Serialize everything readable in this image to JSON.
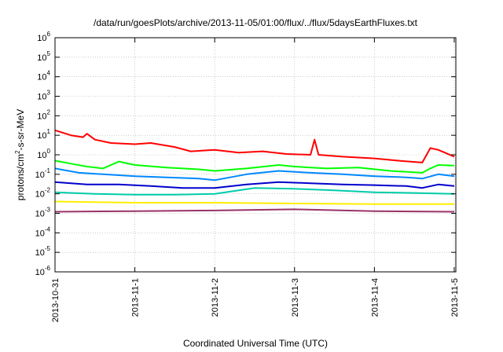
{
  "chart_data": {
    "type": "line",
    "title": "/data/run/goesPlots/archive/2013-11-05/01:00/flux/../flux/5daysEarthFluxes.txt",
    "xlabel": "Coordinated Universal Time (UTC)",
    "ylabel": "protons/cm2-s-sr-MeV",
    "ylabel_parts": {
      "pre": "protons/cm",
      "sup": "2",
      "post": "-s-sr-MeV"
    },
    "yscale": "log",
    "ylim_exp": [
      -6,
      6
    ],
    "ytick_base": "10",
    "ytick_exponents": [
      "-6",
      "-5",
      "-4",
      "-3",
      "-2",
      "-1",
      "0",
      "1",
      "2",
      "3",
      "4",
      "5",
      "6"
    ],
    "x_unit": "days",
    "xlim": [
      0,
      5.02
    ],
    "xticks": [
      {
        "x": 0,
        "label": "2013-10-31"
      },
      {
        "x": 1,
        "label": "2013-11-1"
      },
      {
        "x": 2,
        "label": "2013-11-2"
      },
      {
        "x": 3,
        "label": "2013-11-3"
      },
      {
        "x": 4,
        "label": "2013-11-4"
      },
      {
        "x": 5,
        "label": "2013-11-5"
      }
    ],
    "grid": true,
    "series": [
      {
        "color": "#ff0000",
        "x": [
          0,
          0.2,
          0.35,
          0.4,
          0.5,
          0.7,
          1.0,
          1.2,
          1.5,
          1.7,
          2.0,
          2.3,
          2.6,
          2.9,
          3.2,
          3.25,
          3.3,
          3.6,
          4.0,
          4.3,
          4.6,
          4.7,
          4.8,
          5.0
        ],
        "y": [
          18,
          10,
          8,
          12,
          6,
          4,
          3.5,
          4,
          2.5,
          1.5,
          1.8,
          1.3,
          1.5,
          1.1,
          1.0,
          6,
          1.0,
          0.8,
          0.65,
          0.5,
          0.4,
          2.2,
          1.8,
          0.8
        ]
      },
      {
        "color": "#00ff00",
        "x": [
          0,
          0.2,
          0.4,
          0.6,
          0.8,
          1.0,
          1.4,
          1.8,
          2.0,
          2.4,
          2.8,
          3.0,
          3.4,
          3.8,
          4.2,
          4.6,
          4.7,
          4.8,
          5.0
        ],
        "y": [
          0.5,
          0.35,
          0.25,
          0.2,
          0.45,
          0.3,
          0.22,
          0.18,
          0.15,
          0.2,
          0.3,
          0.25,
          0.2,
          0.22,
          0.15,
          0.12,
          0.2,
          0.3,
          0.28
        ]
      },
      {
        "color": "#0088ff",
        "x": [
          0,
          0.3,
          0.6,
          1.0,
          1.4,
          1.8,
          2.0,
          2.4,
          2.8,
          3.2,
          3.6,
          4.0,
          4.4,
          4.6,
          4.8,
          5.0
        ],
        "y": [
          0.2,
          0.12,
          0.1,
          0.08,
          0.07,
          0.06,
          0.05,
          0.1,
          0.15,
          0.12,
          0.1,
          0.08,
          0.07,
          0.06,
          0.1,
          0.08
        ]
      },
      {
        "color": "#0000cc",
        "x": [
          0,
          0.4,
          0.8,
          1.2,
          1.6,
          2.0,
          2.4,
          2.8,
          3.2,
          3.6,
          4.0,
          4.4,
          4.6,
          4.8,
          5.0
        ],
        "y": [
          0.04,
          0.03,
          0.03,
          0.025,
          0.02,
          0.02,
          0.03,
          0.04,
          0.035,
          0.03,
          0.028,
          0.025,
          0.02,
          0.03,
          0.025
        ]
      },
      {
        "color": "#00ccaa",
        "x": [
          0,
          0.5,
          1.0,
          1.5,
          2.0,
          2.5,
          3.0,
          3.5,
          4.0,
          4.5,
          5.0
        ],
        "y": [
          0.012,
          0.01,
          0.009,
          0.009,
          0.01,
          0.02,
          0.018,
          0.015,
          0.012,
          0.011,
          0.01
        ]
      },
      {
        "color": "#ffee00",
        "x": [
          0,
          1.0,
          2.0,
          3.0,
          4.0,
          5.0
        ],
        "y": [
          0.004,
          0.0035,
          0.0035,
          0.0032,
          0.003,
          0.003
        ]
      },
      {
        "color": "#993366",
        "x": [
          0,
          1.0,
          2.0,
          3.0,
          4.0,
          5.0
        ],
        "y": [
          0.0012,
          0.0013,
          0.0014,
          0.0016,
          0.0013,
          0.0012
        ]
      }
    ]
  }
}
